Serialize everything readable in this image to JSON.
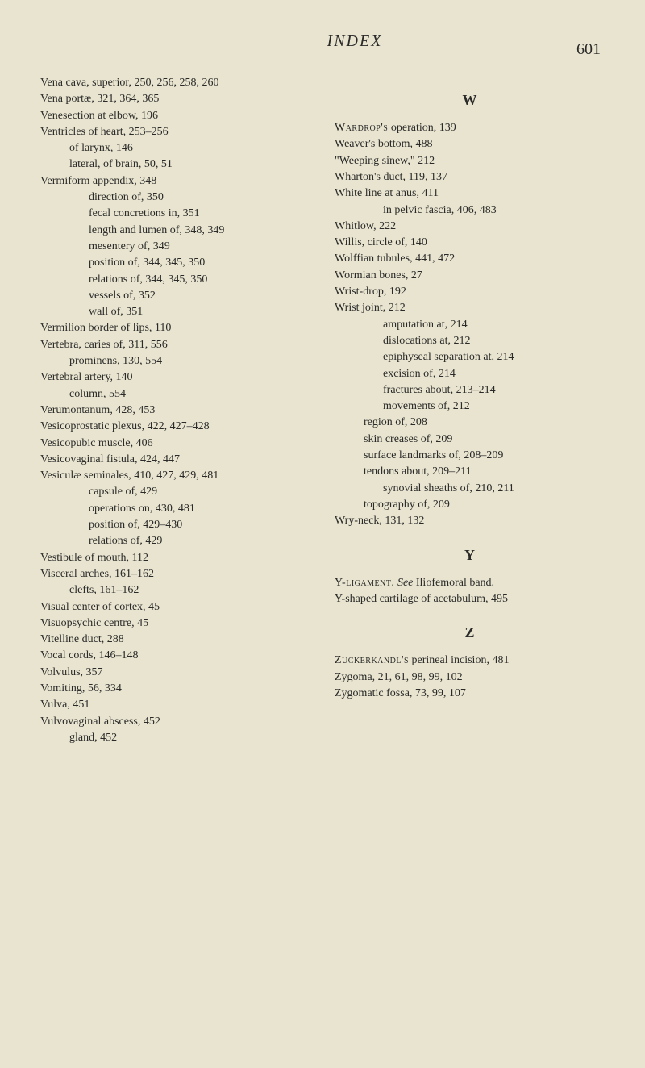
{
  "header": {
    "title": "INDEX",
    "pageNumber": "601"
  },
  "leftColumn": {
    "entries": [
      {
        "text": "Vena cava, superior, 250, 256, 258, 260",
        "level": 0
      },
      {
        "text": "Vena portæ, 321, 364, 365",
        "level": 0
      },
      {
        "text": "Venesection at elbow, 196",
        "level": 0
      },
      {
        "text": "Ventricles of heart, 253–256",
        "level": 0
      },
      {
        "text": "of larynx, 146",
        "level": 1
      },
      {
        "text": "lateral, of brain, 50, 51",
        "level": 1
      },
      {
        "text": "Vermiform appendix, 348",
        "level": 0
      },
      {
        "text": "direction of, 350",
        "level": 2
      },
      {
        "text": "fecal concretions in, 351",
        "level": 2
      },
      {
        "text": "length and lumen of, 348, 349",
        "level": 2
      },
      {
        "text": "mesentery of, 349",
        "level": 2
      },
      {
        "text": "position of, 344, 345, 350",
        "level": 2
      },
      {
        "text": "relations of, 344, 345, 350",
        "level": 2
      },
      {
        "text": "vessels of, 352",
        "level": 2
      },
      {
        "text": "wall of, 351",
        "level": 2
      },
      {
        "text": "Vermilion border of lips, 110",
        "level": 0
      },
      {
        "text": "Vertebra, caries of, 311, 556",
        "level": 0
      },
      {
        "text": "prominens, 130, 554",
        "level": 1
      },
      {
        "text": "Vertebral artery, 140",
        "level": 0
      },
      {
        "text": "column, 554",
        "level": 1
      },
      {
        "text": "Verumontanum, 428, 453",
        "level": 0
      },
      {
        "text": "Vesicoprostatic plexus, 422, 427–428",
        "level": 0
      },
      {
        "text": "Vesicopubic muscle, 406",
        "level": 0
      },
      {
        "text": "Vesicovaginal fistula, 424, 447",
        "level": 0
      },
      {
        "text": "Vesiculæ seminales, 410, 427, 429, 481",
        "level": 0
      },
      {
        "text": "capsule of, 429",
        "level": 2
      },
      {
        "text": "operations on, 430, 481",
        "level": 2
      },
      {
        "text": "position of, 429–430",
        "level": 2
      },
      {
        "text": "relations of, 429",
        "level": 2
      },
      {
        "text": "Vestibule of mouth, 112",
        "level": 0
      },
      {
        "text": "Visceral arches, 161–162",
        "level": 0
      },
      {
        "text": "clefts, 161–162",
        "level": 1
      },
      {
        "text": "Visual center of cortex, 45",
        "level": 0
      },
      {
        "text": "Visuopsychic centre, 45",
        "level": 0
      },
      {
        "text": "Vitelline duct, 288",
        "level": 0
      },
      {
        "text": "Vocal cords, 146–148",
        "level": 0
      },
      {
        "text": "Volvulus, 357",
        "level": 0
      },
      {
        "text": "Vomiting, 56, 334",
        "level": 0
      },
      {
        "text": "Vulva, 451",
        "level": 0
      },
      {
        "text": "Vulvovaginal abscess, 452",
        "level": 0
      },
      {
        "text": "gland, 452",
        "level": 1
      }
    ]
  },
  "rightColumn": {
    "sections": [
      {
        "letter": "W",
        "entries": [
          {
            "prefix": "Wardrop's",
            "suffix": " operation, 139",
            "smallCaps": true,
            "level": 0
          },
          {
            "text": "Weaver's bottom, 488",
            "level": 0
          },
          {
            "text": "\"Weeping sinew,\" 212",
            "level": 0
          },
          {
            "text": "Wharton's duct, 119, 137",
            "level": 0
          },
          {
            "text": "White line at anus, 411",
            "level": 0
          },
          {
            "text": "in pelvic fascia, 406, 483",
            "level": 2
          },
          {
            "text": "Whitlow, 222",
            "level": 0
          },
          {
            "text": "Willis, circle of, 140",
            "level": 0
          },
          {
            "text": "Wolffian tubules, 441, 472",
            "level": 0
          },
          {
            "text": "Wormian bones, 27",
            "level": 0
          },
          {
            "text": "Wrist-drop, 192",
            "level": 0
          },
          {
            "text": "Wrist joint, 212",
            "level": 0
          },
          {
            "text": "amputation at, 214",
            "level": 2
          },
          {
            "text": "dislocations at, 212",
            "level": 2
          },
          {
            "text": "epiphyseal separation at, 214",
            "level": 2
          },
          {
            "text": "excision of, 214",
            "level": 2
          },
          {
            "text": "fractures about, 213–214",
            "level": 2
          },
          {
            "text": "movements of, 212",
            "level": 2
          },
          {
            "text": "region of, 208",
            "level": 1
          },
          {
            "text": "skin creases of, 209",
            "level": 1
          },
          {
            "text": "surface landmarks of, 208–209",
            "level": 1
          },
          {
            "text": "tendons about, 209–211",
            "level": 1
          },
          {
            "text": "synovial sheaths of, 210, 211",
            "level": 2
          },
          {
            "text": "topography of, 209",
            "level": 1
          },
          {
            "text": "Wry-neck, 131, 132",
            "level": 0
          }
        ]
      },
      {
        "letter": "Y",
        "entries": [
          {
            "prefix": "Y-ligament.",
            "suffix": "   See Iliofemoral band.",
            "smallCaps": true,
            "italic": true,
            "level": 0
          },
          {
            "text": "Y-shaped cartilage of acetabulum, 495",
            "level": 0
          }
        ]
      },
      {
        "letter": "Z",
        "entries": [
          {
            "prefix": "Zuckerkandl's",
            "suffix": " perineal incision, 481",
            "smallCaps": true,
            "level": 0
          },
          {
            "text": "Zygoma, 21, 61, 98, 99, 102",
            "level": 0
          },
          {
            "text": "Zygomatic fossa, 73, 99, 107",
            "level": 0
          }
        ]
      }
    ]
  }
}
